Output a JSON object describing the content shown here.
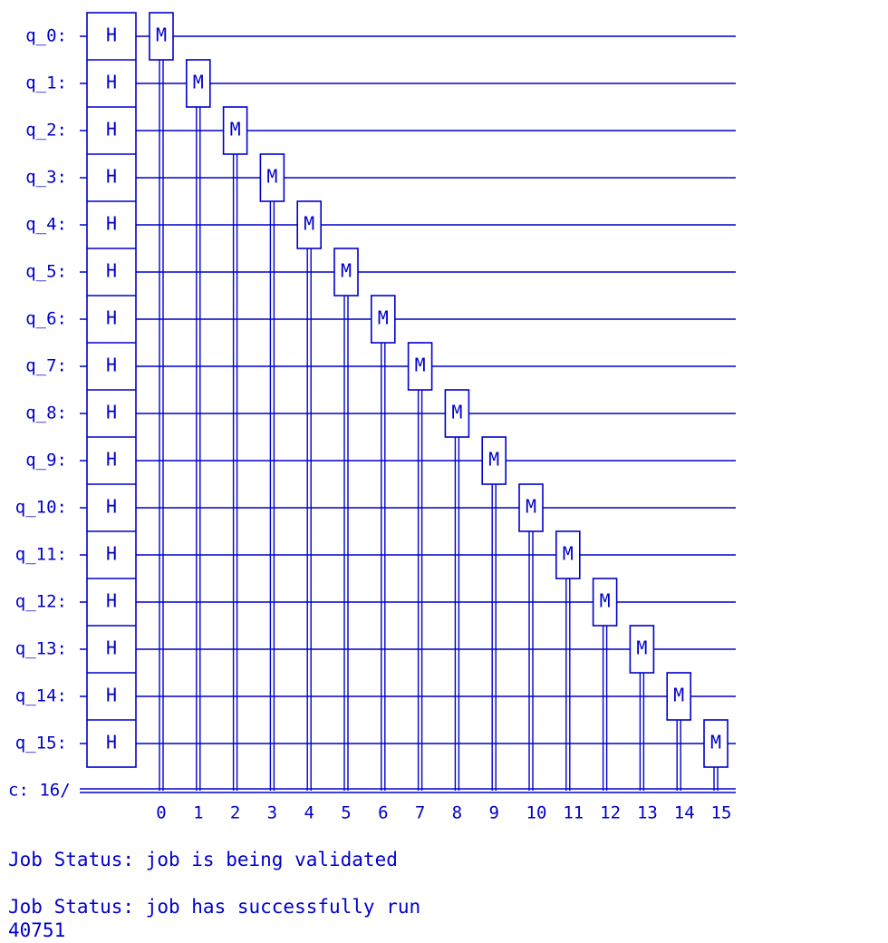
{
  "circuit": {
    "qubit_labels": [
      "q_0:",
      "q_1:",
      "q_2:",
      "q_3:",
      "q_4:",
      "q_5:",
      "q_6:",
      "q_7:",
      "q_8:",
      "q_9:",
      "q_10:",
      "q_11:",
      "q_12:",
      "q_13:",
      "q_14:",
      "q_15:"
    ],
    "hadamard_label": "H",
    "measure_label": "M",
    "classical_register_label": "c: 16/",
    "classical_bit_labels": [
      "0",
      "1",
      "2",
      "3",
      "4",
      "5",
      "6",
      "7",
      "8",
      "9",
      "10",
      "11",
      "12",
      "13",
      "14",
      "15"
    ],
    "wire_color": "#0000cc"
  },
  "output": {
    "status_validated": "Job Status: job is being validated",
    "status_done": "Job Status: job has successfully run",
    "result": "40751"
  }
}
